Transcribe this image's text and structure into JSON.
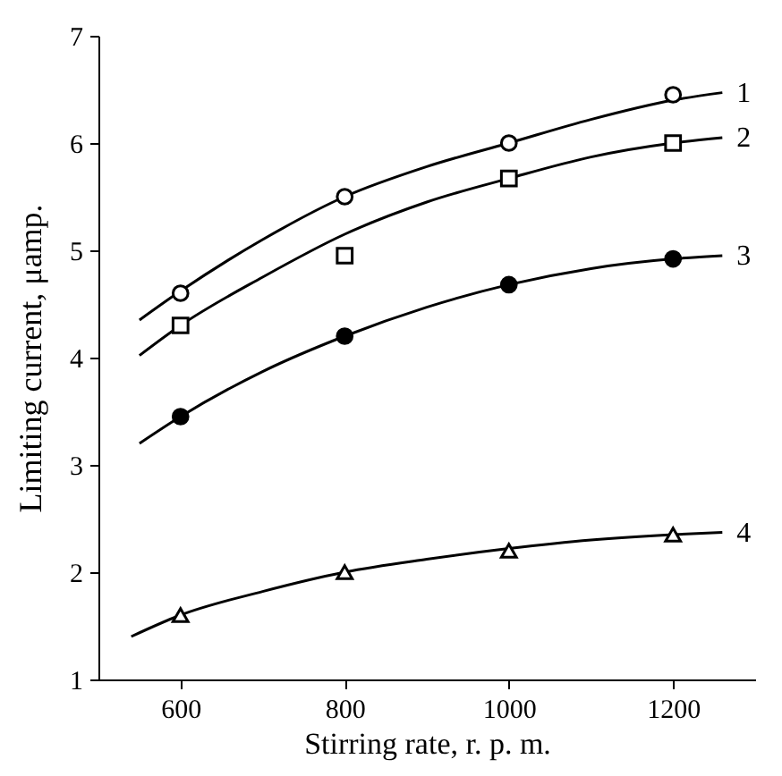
{
  "chart_data": {
    "type": "scatter",
    "xlabel": "Stirring rate, r. p. m.",
    "ylabel": "Limiting current, μamp.",
    "xlim": [
      500,
      1300
    ],
    "ylim": [
      1,
      7
    ],
    "xticks": [
      600,
      800,
      1000,
      1200
    ],
    "yticks": [
      1,
      2,
      3,
      4,
      5,
      6,
      7
    ],
    "grid": false,
    "series": [
      {
        "type": "line",
        "name": "1",
        "color": "#000000",
        "marker": "none",
        "line_style": "solid",
        "x": [
          550,
          600,
          700,
          800,
          900,
          1000,
          1100,
          1200,
          1260
        ],
        "values": [
          4.35,
          4.62,
          5.1,
          5.5,
          5.78,
          6.0,
          6.22,
          6.4,
          6.47
        ]
      },
      {
        "type": "line",
        "name": "2",
        "color": "#000000",
        "marker": "none",
        "line_style": "solid",
        "x": [
          550,
          600,
          700,
          800,
          900,
          1000,
          1100,
          1200,
          1260
        ],
        "values": [
          4.02,
          4.3,
          4.75,
          5.15,
          5.45,
          5.67,
          5.87,
          6.0,
          6.05
        ]
      },
      {
        "type": "line",
        "name": "3",
        "color": "#000000",
        "marker": "none",
        "line_style": "solid",
        "x": [
          550,
          600,
          700,
          800,
          900,
          1000,
          1100,
          1200,
          1260
        ],
        "values": [
          3.2,
          3.45,
          3.87,
          4.2,
          4.47,
          4.68,
          4.83,
          4.92,
          4.95
        ]
      },
      {
        "type": "line",
        "name": "4",
        "color": "#000000",
        "marker": "none",
        "line_style": "solid",
        "x": [
          540,
          600,
          700,
          800,
          900,
          1000,
          1100,
          1200,
          1260
        ],
        "values": [
          1.4,
          1.6,
          1.82,
          2.0,
          2.12,
          2.22,
          2.3,
          2.35,
          2.37
        ]
      },
      {
        "type": "scatter",
        "color": "#ffffff",
        "marker": "circle",
        "x": [
          600,
          800,
          1000,
          1200
        ],
        "values": [
          4.6,
          5.5,
          6.0,
          6.45
        ]
      },
      {
        "type": "scatter",
        "color": "#ffffff",
        "marker": "square",
        "x": [
          600,
          800,
          1000,
          1200
        ],
        "values": [
          4.3,
          4.95,
          5.67,
          6.0
        ]
      },
      {
        "type": "scatter",
        "color": "#000000",
        "marker": "circle",
        "x": [
          600,
          800,
          1000,
          1200
        ],
        "values": [
          3.45,
          4.2,
          4.68,
          4.92
        ]
      },
      {
        "type": "scatter",
        "color": "#ffffff",
        "marker": "triangle",
        "x": [
          600,
          800,
          1000,
          1200
        ],
        "values": [
          1.6,
          2.0,
          2.2,
          2.35
        ]
      }
    ]
  }
}
